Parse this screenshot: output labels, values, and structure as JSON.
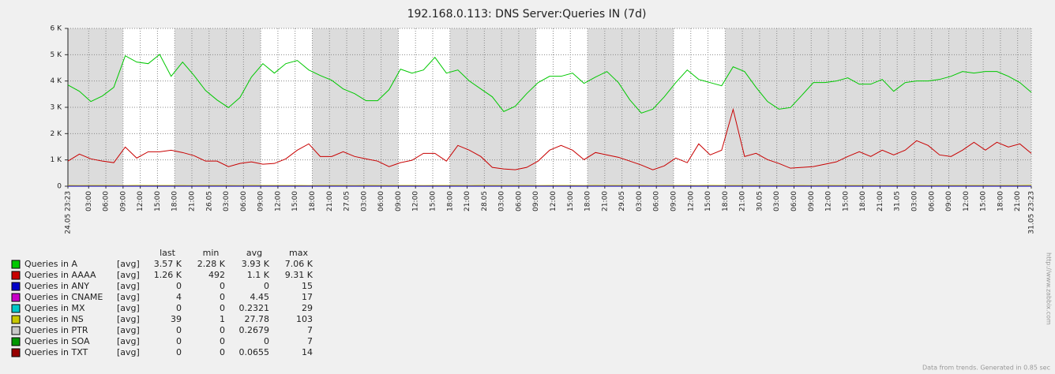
{
  "chart_data": {
    "type": "line",
    "title": "192.168.0.113: DNS Server:Queries IN (7d)",
    "footer": "Data from trends. Generated in 0.85 sec",
    "watermark": "http://www.zabbix.com",
    "grid": true,
    "background": "#dcdcdc",
    "work_color": "#ffffff",
    "work_periods": [
      [
        9.617,
        18.617
      ],
      [
        33.617,
        42.617
      ],
      [
        57.617,
        66.617
      ],
      [
        81.617,
        90.617
      ],
      [
        105.617,
        114.617
      ]
    ],
    "xlim": [
      0,
      168
    ],
    "ylim": [
      0,
      6000
    ],
    "yticks": [
      0,
      {
        "value": 1000,
        "label": "1 K"
      },
      {
        "value": 2000,
        "label": "2 K"
      },
      {
        "value": 3000,
        "label": "3 K"
      },
      {
        "value": 4000,
        "label": "4 K"
      },
      {
        "value": 5000,
        "label": "5 K"
      },
      {
        "value": 6000,
        "label": "6 K"
      }
    ],
    "xticks": [
      {
        "value": 0,
        "label": "24.05 23:23"
      },
      {
        "value": 3.617,
        "label": "03:00"
      },
      {
        "value": 6.617,
        "label": "06:00"
      },
      {
        "value": 9.617,
        "label": "09:00"
      },
      {
        "value": 12.617,
        "label": "12:00"
      },
      {
        "value": 15.617,
        "label": "15:00"
      },
      {
        "value": 18.617,
        "label": "18:00"
      },
      {
        "value": 21.617,
        "label": "21:00"
      },
      {
        "value": 24.617,
        "label": "26.05"
      },
      {
        "value": 27.617,
        "label": "03:00"
      },
      {
        "value": 30.617,
        "label": "06:00"
      },
      {
        "value": 33.617,
        "label": "09:00"
      },
      {
        "value": 36.617,
        "label": "12:00"
      },
      {
        "value": 39.617,
        "label": "15:00"
      },
      {
        "value": 42.617,
        "label": "18:00"
      },
      {
        "value": 45.617,
        "label": "21:00"
      },
      {
        "value": 48.617,
        "label": "27.05"
      },
      {
        "value": 51.617,
        "label": "03:00"
      },
      {
        "value": 54.617,
        "label": "06:00"
      },
      {
        "value": 57.617,
        "label": "09:00"
      },
      {
        "value": 60.617,
        "label": "12:00"
      },
      {
        "value": 63.617,
        "label": "15:00"
      },
      {
        "value": 66.617,
        "label": "18:00"
      },
      {
        "value": 69.617,
        "label": "21:00"
      },
      {
        "value": 72.617,
        "label": "28.05"
      },
      {
        "value": 75.617,
        "label": "03:00"
      },
      {
        "value": 78.617,
        "label": "06:00"
      },
      {
        "value": 81.617,
        "label": "09:00"
      },
      {
        "value": 84.617,
        "label": "12:00"
      },
      {
        "value": 87.617,
        "label": "15:00"
      },
      {
        "value": 90.617,
        "label": "18:00"
      },
      {
        "value": 93.617,
        "label": "21:00"
      },
      {
        "value": 96.617,
        "label": "29.05"
      },
      {
        "value": 99.617,
        "label": "03:00"
      },
      {
        "value": 102.617,
        "label": "06:00"
      },
      {
        "value": 105.617,
        "label": "09:00"
      },
      {
        "value": 108.617,
        "label": "12:00"
      },
      {
        "value": 111.617,
        "label": "15:00"
      },
      {
        "value": 114.617,
        "label": "18:00"
      },
      {
        "value": 117.617,
        "label": "21:00"
      },
      {
        "value": 120.617,
        "label": "30.05"
      },
      {
        "value": 123.617,
        "label": "03:00"
      },
      {
        "value": 126.617,
        "label": "06:00"
      },
      {
        "value": 129.617,
        "label": "09:00"
      },
      {
        "value": 132.617,
        "label": "12:00"
      },
      {
        "value": 135.617,
        "label": "15:00"
      },
      {
        "value": 138.617,
        "label": "18:00"
      },
      {
        "value": 141.617,
        "label": "21:00"
      },
      {
        "value": 144.617,
        "label": "31.05"
      },
      {
        "value": 147.617,
        "label": "03:00"
      },
      {
        "value": 150.617,
        "label": "06:00"
      },
      {
        "value": 153.617,
        "label": "09:00"
      },
      {
        "value": 156.617,
        "label": "12:00"
      },
      {
        "value": 159.617,
        "label": "15:00"
      },
      {
        "value": 162.617,
        "label": "18:00"
      },
      {
        "value": 165.617,
        "label": "21:00"
      },
      {
        "value": 168,
        "label": "31.05 23:23"
      }
    ],
    "x": [
      0,
      2,
      4,
      6,
      8,
      10,
      12,
      14,
      16,
      18,
      20,
      22,
      24,
      26,
      28,
      30,
      32,
      34,
      36,
      38,
      40,
      42,
      44,
      46,
      48,
      50,
      52,
      54,
      56,
      58,
      60,
      62,
      64,
      66,
      68,
      70,
      72,
      74,
      76,
      78,
      80,
      82,
      84,
      86,
      88,
      90,
      92,
      94,
      96,
      98,
      100,
      102,
      104,
      106,
      108,
      110,
      112,
      114,
      116,
      118,
      120,
      122,
      124,
      126,
      128,
      130,
      132,
      134,
      136,
      138,
      140,
      142,
      144,
      146,
      148,
      150,
      152,
      154,
      156,
      158,
      160,
      162,
      164,
      166,
      168
    ],
    "stat_headers": [
      "last",
      "min",
      "avg",
      "max"
    ],
    "series": [
      {
        "name": "Queries in A",
        "color": "#00c800",
        "function": "[avg]",
        "stats": [
          "3.57 K",
          "2.28 K",
          "3.93 K",
          "7.06 K"
        ],
        "values": [
          3850,
          3610,
          3220,
          3430,
          3760,
          4960,
          4720,
          4660,
          5010,
          4180,
          4720,
          4210,
          3640,
          3280,
          2990,
          3370,
          4150,
          4660,
          4300,
          4660,
          4780,
          4420,
          4210,
          4030,
          3700,
          3520,
          3250,
          3250,
          3670,
          4450,
          4300,
          4420,
          4900,
          4300,
          4420,
          4000,
          3700,
          3400,
          2840,
          3040,
          3520,
          3940,
          4180,
          4180,
          4300,
          3910,
          4150,
          4360,
          3940,
          3280,
          2780,
          2930,
          3400,
          3940,
          4420,
          4060,
          3940,
          3820,
          4540,
          4360,
          3760,
          3220,
          2930,
          2990,
          3460,
          3940,
          3940,
          4000,
          4120,
          3880,
          3880,
          4060,
          3610,
          3940,
          4000,
          4000,
          4060,
          4180,
          4360,
          4300,
          4360,
          4360,
          4180,
          3940,
          3570
        ]
      },
      {
        "name": "Queries in AAAA",
        "color": "#c80000",
        "function": "[avg]",
        "stats": [
          "1.26 K",
          492,
          "1.1 K",
          "9.31 K"
        ],
        "values": [
          955,
          1220,
          1040,
          955,
          895,
          1490,
          1070,
          1310,
          1310,
          1370,
          1280,
          1160,
          955,
          955,
          745,
          865,
          925,
          835,
          865,
          1040,
          1370,
          1610,
          1130,
          1130,
          1310,
          1130,
          1040,
          955,
          745,
          895,
          985,
          1250,
          1250,
          955,
          1550,
          1370,
          1130,
          715,
          655,
          625,
          715,
          955,
          1370,
          1550,
          1370,
          1010,
          1280,
          1190,
          1100,
          955,
          805,
          625,
          775,
          1070,
          895,
          1610,
          1190,
          1370,
          2920,
          1130,
          1250,
          1010,
          865,
          685,
          715,
          745,
          835,
          925,
          1130,
          1310,
          1130,
          1370,
          1190,
          1370,
          1730,
          1550,
          1190,
          1130,
          1370,
          1670,
          1370,
          1670,
          1490,
          1610,
          1250
        ]
      },
      {
        "name": "Queries in ANY",
        "color": "#0000c8",
        "function": "[avg]",
        "stats": [
          0,
          0,
          0,
          15
        ],
        "values": [
          0,
          0,
          0,
          0,
          0,
          0,
          0,
          0,
          0,
          0,
          0,
          0,
          0,
          0,
          0,
          0,
          0,
          0,
          0,
          0,
          0,
          0,
          0,
          0,
          0,
          0,
          0,
          0,
          0,
          0,
          0,
          0,
          0,
          0,
          0,
          0,
          0,
          0,
          0,
          0,
          0,
          0,
          0,
          0,
          0,
          0,
          0,
          0,
          0,
          0,
          0,
          0,
          0,
          0,
          0,
          0,
          0,
          0,
          0,
          0,
          0,
          0,
          0,
          0,
          0,
          0,
          0,
          0,
          0,
          0,
          0,
          0,
          0,
          0,
          0,
          0,
          0,
          0,
          0,
          0,
          0,
          0,
          0,
          0,
          0
        ]
      },
      {
        "name": "Queries in CNAME",
        "color": "#c800c8",
        "function": "[avg]",
        "stats": [
          4,
          0,
          4.45,
          17
        ],
        "values": [
          4,
          5,
          4,
          4,
          5,
          4,
          4,
          5,
          4,
          4,
          5,
          4,
          4,
          5,
          4,
          4,
          5,
          4,
          4,
          5,
          4,
          4,
          5,
          4,
          4,
          5,
          4,
          4,
          5,
          4,
          4,
          5,
          4,
          4,
          5,
          4,
          4,
          5,
          4,
          4,
          5,
          4,
          4,
          5,
          4,
          4,
          5,
          4,
          4,
          5,
          4,
          4,
          5,
          4,
          4,
          5,
          4,
          4,
          5,
          4,
          4,
          5,
          4,
          4,
          5,
          4,
          4,
          5,
          4,
          4,
          5,
          4,
          4,
          5,
          4,
          4,
          5,
          4,
          4,
          5,
          4,
          4,
          5,
          4,
          4
        ]
      },
      {
        "name": "Queries in MX",
        "color": "#00c8c8",
        "function": "[avg]",
        "stats": [
          0,
          0,
          0.2321,
          29
        ],
        "values": [
          0,
          0,
          0,
          0,
          0,
          0,
          0,
          0,
          0,
          0,
          0,
          0,
          0,
          0,
          0,
          0,
          0,
          0,
          0,
          0,
          0,
          0,
          0,
          0,
          0,
          0,
          0,
          0,
          0,
          0,
          0,
          0,
          0,
          0,
          0,
          0,
          0,
          0,
          0,
          0,
          0,
          0,
          0,
          0,
          0,
          0,
          0,
          0,
          0,
          0,
          0,
          0,
          0,
          0,
          0,
          0,
          0,
          0,
          0,
          0,
          0,
          0,
          0,
          0,
          0,
          0,
          0,
          0,
          0,
          0,
          0,
          0,
          0,
          0,
          0,
          0,
          0,
          0,
          0,
          0,
          0,
          0,
          0,
          0,
          0
        ]
      },
      {
        "name": "Queries in NS",
        "color": "#c8c800",
        "function": "[avg]",
        "stats": [
          39,
          1,
          27.78,
          103
        ],
        "values": [
          30,
          28,
          31,
          29,
          30,
          27,
          32,
          30,
          29,
          31,
          30,
          28,
          31,
          29,
          30,
          27,
          32,
          30,
          29,
          31,
          30,
          28,
          31,
          29,
          30,
          27,
          32,
          30,
          29,
          31,
          30,
          28,
          31,
          29,
          30,
          27,
          32,
          30,
          29,
          31,
          30,
          28,
          31,
          29,
          30,
          27,
          32,
          30,
          29,
          31,
          30,
          28,
          31,
          29,
          30,
          27,
          32,
          30,
          29,
          31,
          30,
          28,
          31,
          29,
          30,
          27,
          32,
          30,
          29,
          31,
          30,
          28,
          31,
          29,
          30,
          27,
          32,
          30,
          29,
          31,
          30,
          28,
          31,
          29,
          39
        ]
      },
      {
        "name": "Queries in PTR",
        "color": "#c8c8c8",
        "function": "[avg]",
        "stats": [
          0,
          0,
          0.2679,
          7
        ],
        "values": [
          0,
          0,
          0,
          0,
          0,
          0,
          0,
          0,
          0,
          0,
          0,
          0,
          0,
          0,
          0,
          0,
          0,
          0,
          0,
          0,
          0,
          0,
          0,
          0,
          0,
          0,
          0,
          0,
          0,
          0,
          0,
          0,
          0,
          0,
          0,
          0,
          0,
          0,
          0,
          0,
          0,
          0,
          0,
          0,
          0,
          0,
          0,
          0,
          0,
          0,
          0,
          0,
          0,
          0,
          0,
          0,
          0,
          0,
          0,
          0,
          0,
          0,
          0,
          0,
          0,
          0,
          0,
          0,
          0,
          0,
          0,
          0,
          0,
          0,
          0,
          0,
          0,
          0,
          0,
          0,
          0,
          0,
          0,
          0,
          0
        ]
      },
      {
        "name": "Queries in SOA",
        "color": "#009600",
        "function": "[avg]",
        "stats": [
          0,
          0,
          0,
          7
        ],
        "values": [
          0,
          0,
          0,
          0,
          0,
          0,
          0,
          0,
          0,
          0,
          0,
          0,
          0,
          0,
          0,
          0,
          0,
          0,
          0,
          0,
          0,
          0,
          0,
          0,
          0,
          0,
          0,
          0,
          0,
          0,
          0,
          0,
          0,
          0,
          0,
          0,
          0,
          0,
          0,
          0,
          0,
          0,
          0,
          0,
          0,
          0,
          0,
          0,
          0,
          0,
          0,
          0,
          0,
          0,
          0,
          0,
          0,
          0,
          0,
          0,
          0,
          0,
          0,
          0,
          0,
          0,
          0,
          0,
          0,
          0,
          0,
          0,
          0,
          0,
          0,
          0,
          0,
          0,
          0,
          0,
          0,
          0,
          0,
          0,
          0
        ]
      },
      {
        "name": "Queries in TXT",
        "color": "#960000",
        "function": "[avg]",
        "stats": [
          0,
          0,
          0.0655,
          14
        ],
        "values": [
          0,
          0,
          0,
          0,
          0,
          0,
          0,
          0,
          0,
          0,
          0,
          0,
          0,
          0,
          0,
          0,
          0,
          0,
          0,
          0,
          0,
          0,
          0,
          0,
          0,
          0,
          0,
          0,
          0,
          0,
          0,
          0,
          0,
          0,
          0,
          0,
          0,
          0,
          0,
          0,
          0,
          0,
          0,
          0,
          0,
          0,
          0,
          0,
          0,
          0,
          0,
          0,
          0,
          0,
          0,
          0,
          0,
          0,
          0,
          0,
          0,
          0,
          0,
          0,
          0,
          0,
          0,
          0,
          0,
          0,
          0,
          0,
          0,
          0,
          0,
          0,
          0,
          0,
          0,
          0,
          0,
          0,
          0,
          0,
          0
        ]
      }
    ]
  }
}
